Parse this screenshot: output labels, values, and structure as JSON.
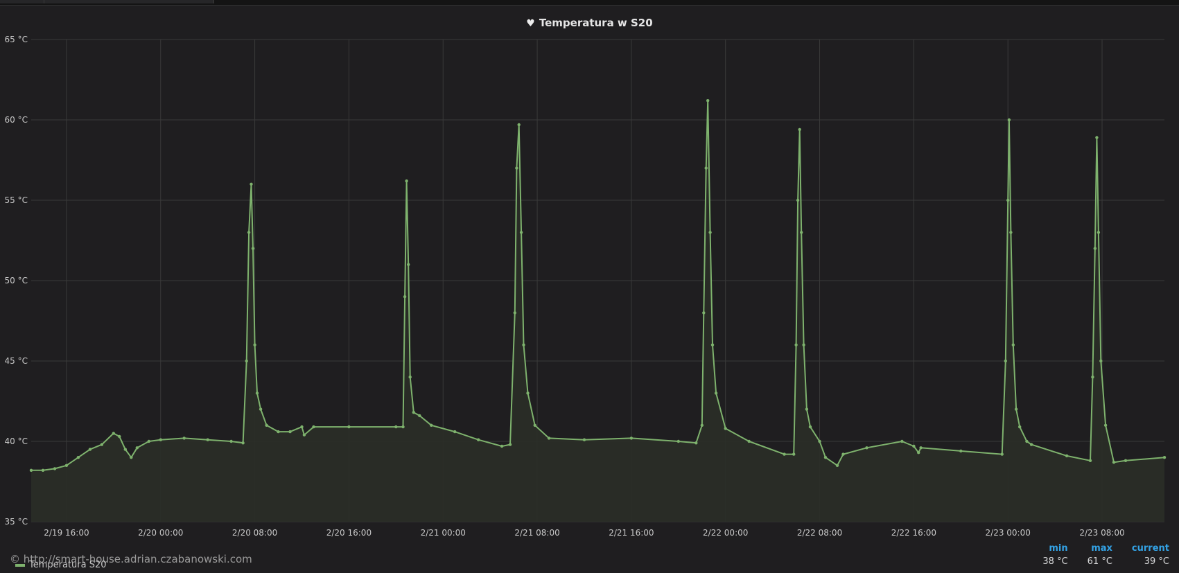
{
  "panel": {
    "title": "Temperatura w S20",
    "title_icon": "heart-icon",
    "watermark": "© http://smart-house.adrian.czabanowski.com"
  },
  "legend": {
    "series_name": "Temperatura S20",
    "headers": {
      "min": "min",
      "max": "max",
      "current": "current"
    },
    "values": {
      "min": "38 °C",
      "max": "61 °C",
      "current": "39 °C"
    }
  },
  "colors": {
    "background": "#1f1e20",
    "grid": "#3a3a3a",
    "series": "#7eb26d",
    "fill": "#2a2d27",
    "legend_header": "#33a2e5"
  },
  "chart_data": {
    "type": "line",
    "title": "Temperatura w S20",
    "ylabel": "",
    "xlabel": "",
    "y_unit": "°C",
    "ylim": [
      35,
      65
    ],
    "y_ticks": [
      "35 °C",
      "40 °C",
      "45 °C",
      "50 °C",
      "55 °C",
      "60 °C",
      "65 °C"
    ],
    "x_ticks": [
      "2/19 16:00",
      "2/20 00:00",
      "2/20 08:00",
      "2/20 16:00",
      "2/21 00:00",
      "2/21 08:00",
      "2/21 16:00",
      "2/22 00:00",
      "2/22 08:00",
      "2/22 16:00",
      "2/23 00:00",
      "2/23 08:00"
    ],
    "x_tick_hours": [
      16,
      24,
      32,
      40,
      48,
      56,
      64,
      72,
      80,
      88,
      96,
      104
    ],
    "xlim_hours": [
      13.0,
      109.3
    ],
    "x_hours_origin": "2/19 00:00",
    "grid": true,
    "fill_area": true,
    "series": [
      {
        "name": "Temperatura S20",
        "x_hours": [
          13.0,
          14.0,
          15.0,
          16.0,
          17.0,
          18.0,
          19.0,
          20.0,
          20.5,
          21.0,
          21.5,
          22.0,
          23.0,
          24.0,
          26.0,
          28.0,
          30.0,
          31.0,
          31.3,
          31.5,
          31.7,
          31.85,
          32.0,
          32.2,
          32.5,
          33.0,
          34.0,
          35.0,
          36.0,
          36.2,
          37.0,
          40.0,
          44.0,
          44.6,
          44.75,
          44.9,
          45.05,
          45.2,
          45.5,
          46.0,
          47.0,
          49.0,
          51.0,
          53.0,
          53.7,
          54.1,
          54.25,
          54.45,
          54.65,
          54.85,
          55.2,
          55.8,
          57.0,
          60.0,
          64.0,
          68.0,
          69.5,
          70.0,
          70.15,
          70.35,
          70.5,
          70.7,
          70.9,
          71.2,
          72.0,
          74.0,
          77.0,
          77.8,
          78.0,
          78.15,
          78.3,
          78.45,
          78.65,
          78.9,
          79.2,
          80.0,
          80.5,
          81.5,
          82.0,
          84.0,
          87.0,
          88.0,
          88.4,
          88.6,
          92.0,
          95.5,
          95.8,
          96.0,
          96.1,
          96.25,
          96.45,
          96.7,
          97.0,
          97.6,
          98.0,
          101.0,
          103.0,
          103.2,
          103.4,
          103.55,
          103.7,
          103.9,
          104.3,
          105.0,
          106.0,
          109.3
        ],
        "values": [
          38.2,
          38.2,
          38.3,
          38.5,
          39.0,
          39.5,
          39.8,
          40.5,
          40.3,
          39.5,
          39.0,
          39.6,
          40.0,
          40.1,
          40.2,
          40.1,
          40.0,
          39.9,
          45.0,
          53.0,
          56.0,
          52.0,
          46.0,
          43.0,
          42.0,
          41.0,
          40.6,
          40.6,
          40.9,
          40.4,
          40.9,
          40.9,
          40.9,
          40.9,
          49.0,
          56.2,
          51.0,
          44.0,
          41.8,
          41.6,
          41.0,
          40.6,
          40.1,
          39.7,
          39.8,
          48.0,
          57.0,
          59.7,
          53.0,
          46.0,
          43.0,
          41.0,
          40.2,
          40.1,
          40.2,
          40.0,
          39.9,
          41.0,
          48.0,
          57.0,
          61.2,
          53.0,
          46.0,
          43.0,
          40.8,
          40.0,
          39.2,
          39.2,
          46.0,
          55.0,
          59.4,
          53.0,
          46.0,
          42.0,
          40.9,
          40.0,
          39.0,
          38.5,
          39.2,
          39.6,
          40.0,
          39.7,
          39.3,
          39.6,
          39.4,
          39.2,
          45.0,
          55.0,
          60.0,
          53.0,
          46.0,
          42.0,
          40.9,
          40.0,
          39.8,
          39.1,
          38.8,
          44.0,
          52.0,
          58.9,
          53.0,
          45.0,
          41.0,
          38.7,
          38.8,
          39.0
        ]
      }
    ]
  }
}
